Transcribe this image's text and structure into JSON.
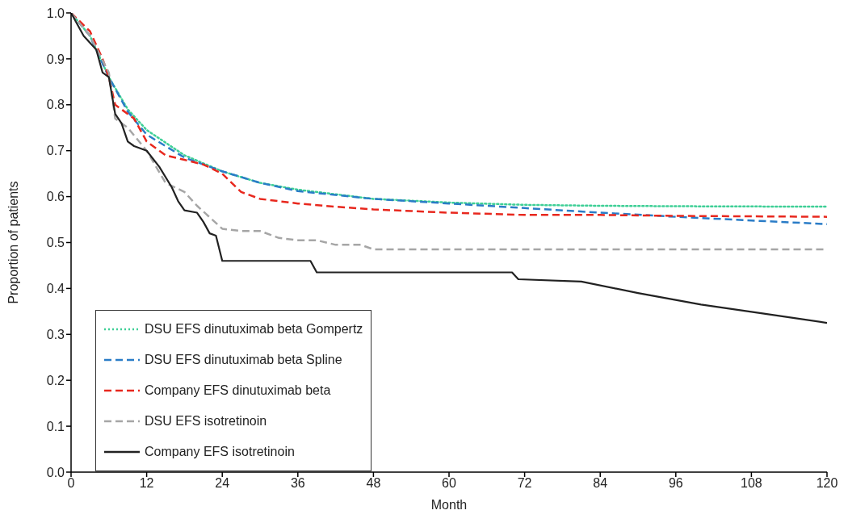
{
  "chart_data": {
    "type": "line",
    "xlabel": "Month",
    "ylabel": "Proportion of patients",
    "xlim": [
      0,
      120
    ],
    "xticks": [
      0,
      12,
      24,
      36,
      48,
      60,
      72,
      84,
      96,
      108,
      120
    ],
    "ylim": [
      0,
      1
    ],
    "yticks": [
      {
        "value": 0,
        "label": "0.0"
      },
      0.1,
      0.2,
      0.3,
      0.4,
      0.5,
      0.6,
      0.7,
      0.8,
      0.9,
      {
        "value": 1,
        "label": "1.0"
      }
    ],
    "grid": false,
    "legend": "bottom left",
    "marker": "none",
    "series": [
      {
        "name": "DSU EFS dinutuximab beta Gompertz",
        "color": "#3ecf96",
        "line_style": "dotted",
        "x": [
          0,
          3,
          6,
          9,
          12,
          18,
          24,
          30,
          36,
          48,
          60,
          72,
          84,
          96,
          120
        ],
        "values": [
          1.0,
          0.95,
          0.86,
          0.79,
          0.745,
          0.69,
          0.655,
          0.63,
          0.615,
          0.595,
          0.587,
          0.582,
          0.58,
          0.579,
          0.578
        ]
      },
      {
        "name": "DSU EFS dinutuximab beta Spline",
        "color": "#2a7cc7",
        "line_style": "dashed",
        "x": [
          0,
          3,
          6,
          9,
          12,
          18,
          24,
          30,
          36,
          48,
          60,
          72,
          84,
          96,
          108,
          120
        ],
        "values": [
          1.0,
          0.95,
          0.86,
          0.785,
          0.735,
          0.685,
          0.655,
          0.63,
          0.612,
          0.595,
          0.585,
          0.575,
          0.565,
          0.556,
          0.548,
          0.54
        ]
      },
      {
        "name": "Company EFS dinutuximab beta",
        "color": "#e8281e",
        "line_style": "dashed",
        "x": [
          0,
          3,
          5,
          6,
          7,
          8,
          10,
          12,
          15,
          18,
          21,
          24,
          27,
          30,
          36,
          42,
          48,
          60,
          72,
          84,
          96,
          120
        ],
        "values": [
          1.0,
          0.96,
          0.9,
          0.86,
          0.8,
          0.79,
          0.77,
          0.72,
          0.69,
          0.68,
          0.67,
          0.65,
          0.61,
          0.595,
          0.585,
          0.578,
          0.572,
          0.565,
          0.56,
          0.56,
          0.558,
          0.556
        ]
      },
      {
        "name": "DSU EFS isotretinoin",
        "color": "#a6a6a6",
        "line_style": "dashed",
        "x": [
          0,
          3,
          6,
          7,
          9,
          12,
          15,
          18,
          20,
          24,
          27,
          30,
          33,
          36,
          39,
          42,
          46,
          48,
          120
        ],
        "values": [
          1,
          0.95,
          0.87,
          0.77,
          0.75,
          0.7,
          0.63,
          0.61,
          0.58,
          0.53,
          0.525,
          0.525,
          0.51,
          0.505,
          0.505,
          0.495,
          0.495,
          0.485,
          0.485
        ]
      },
      {
        "name": "Company EFS isotretinoin",
        "color": "#222222",
        "line_style": "solid",
        "x": [
          0,
          2,
          4,
          5,
          6,
          7,
          8,
          9,
          10,
          12,
          14,
          16,
          17,
          18,
          20,
          21,
          22,
          23,
          24,
          38,
          39,
          70,
          71,
          81,
          90,
          100,
          110,
          120
        ],
        "values": [
          1,
          0.95,
          0.92,
          0.87,
          0.86,
          0.78,
          0.76,
          0.72,
          0.71,
          0.7,
          0.665,
          0.62,
          0.59,
          0.57,
          0.565,
          0.545,
          0.52,
          0.515,
          0.46,
          0.46,
          0.435,
          0.435,
          0.42,
          0.415,
          0.39,
          0.365,
          0.345,
          0.325
        ]
      }
    ]
  }
}
